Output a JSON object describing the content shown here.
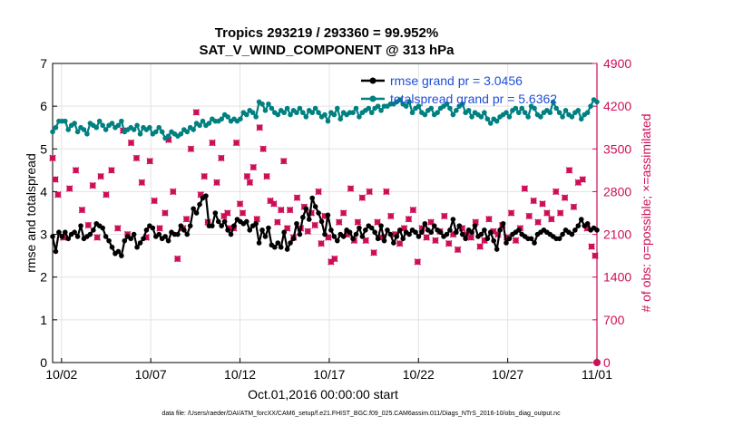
{
  "chart_data": {
    "type": "line",
    "title_line1": "Tropics 293219 / 293360 = 99.952%",
    "title_line2": "SAT_V_WIND_COMPONENT @ 313 hPa",
    "xlabel": "Oct.01,2016 00:00:00 start",
    "ylabel_left": "rmse and totalspread",
    "ylabel_right": "# of obs: o=possible; ×=assimilated",
    "footnote": "data file: /Users/raeder/DAI/ATM_forcXX/CAM6_setup/f.e21.FHIST_BGC.f09_025.CAM6assim.011/Diags_NTrS_2016-10/obs_diag_output.nc",
    "x_start_date": "10/01",
    "x_ticks": [
      {
        "day": 1,
        "label": "10/02"
      },
      {
        "day": 6,
        "label": "10/07"
      },
      {
        "day": 11,
        "label": "10/12"
      },
      {
        "day": 16,
        "label": "10/17"
      },
      {
        "day": 21,
        "label": "10/22"
      },
      {
        "day": 26,
        "label": "10/27"
      },
      {
        "day": 31,
        "label": "11/01"
      }
    ],
    "xlim_days": [
      0.5,
      31.0
    ],
    "ylim_left": [
      0,
      7
    ],
    "y_ticks_left": [
      0,
      1,
      2,
      3,
      4,
      5,
      6,
      7
    ],
    "ylim_right": [
      0,
      4900
    ],
    "y_ticks_right": [
      0,
      700,
      1400,
      2100,
      2800,
      3500,
      4200,
      4900
    ],
    "grid": true,
    "legend_placement": "top-right",
    "colors": {
      "rmse": "#000000",
      "spread": "#008080",
      "obs": "#cc0f57",
      "right_axis": "#cc0f57",
      "legend_text": "#1f4fd8"
    },
    "series": [
      {
        "name": "rmse grand pr = 3.0456",
        "axis": "left",
        "color": "#000000",
        "values": [
          2.95,
          2.6,
          3.05,
          2.95,
          3.05,
          2.9,
          3.0,
          3.05,
          2.95,
          3.2,
          2.9,
          2.95,
          3.0,
          3.1,
          3.25,
          3.2,
          3.15,
          2.95,
          2.85,
          2.7,
          2.55,
          2.6,
          2.5,
          2.85,
          2.95,
          2.9,
          3.0,
          2.7,
          2.8,
          2.9,
          3.1,
          3.2,
          3.15,
          2.95,
          3.0,
          2.9,
          2.95,
          2.85,
          3.05,
          3.0,
          3.0,
          3.2,
          3.1,
          3.0,
          3.2,
          3.6,
          3.5,
          3.7,
          3.85,
          3.9,
          3.2,
          3.2,
          3.5,
          3.3,
          3.2,
          3.3,
          3.1,
          3.0,
          3.2,
          3.35,
          3.3,
          3.25,
          3.3,
          3.1,
          3.2,
          3.25,
          2.8,
          3.1,
          2.95,
          3.15,
          2.75,
          2.7,
          2.8,
          2.7,
          3.05,
          2.65,
          2.8,
          2.9,
          3.25,
          3.0,
          3.4,
          3.6,
          3.35,
          3.85,
          3.65,
          3.5,
          3.3,
          3.0,
          3.45,
          3.1,
          2.95,
          2.85,
          3.0,
          2.95,
          3.1,
          3.05,
          2.9,
          3.0,
          3.15,
          2.95,
          3.1,
          3.2,
          3.15,
          3.05,
          2.9,
          3.2,
          2.85,
          3.1,
          3.0,
          2.8,
          2.95,
          3.1,
          2.9,
          3.05,
          3.0,
          3.1,
          3.05,
          2.95,
          3.05,
          3.25,
          3.1,
          3.05,
          3.2,
          3.1,
          3.05,
          2.95,
          3.0,
          3.1,
          3.35,
          3.05,
          3.2,
          3.0,
          2.9,
          3.1,
          3.05,
          3.2,
          2.95,
          3.0,
          3.1,
          2.9,
          3.05,
          2.85,
          2.65,
          3.1,
          3.25,
          2.8,
          2.9,
          3.0,
          3.05,
          3.1,
          3.0,
          2.95,
          2.9,
          2.9,
          2.8,
          3.0,
          3.05,
          3.1,
          3.05,
          3.0,
          2.95,
          2.9,
          2.9,
          3.0,
          3.1,
          3.05,
          3.0,
          3.1,
          3.2,
          3.35,
          3.2,
          3.25,
          3.1,
          3.15,
          3.1
        ]
      },
      {
        "name": "totalspread grand pr = 5.6362",
        "axis": "left",
        "color": "#008080",
        "values": [
          5.4,
          5.5,
          5.65,
          5.65,
          5.65,
          5.45,
          5.55,
          5.6,
          5.4,
          5.5,
          5.45,
          5.35,
          5.6,
          5.55,
          5.5,
          5.65,
          5.55,
          5.45,
          5.55,
          5.6,
          5.5,
          5.55,
          5.65,
          5.4,
          5.45,
          5.5,
          5.45,
          5.55,
          5.35,
          5.5,
          5.45,
          5.5,
          5.35,
          5.4,
          5.5,
          5.4,
          5.25,
          5.3,
          5.4,
          5.35,
          5.3,
          5.35,
          5.45,
          5.4,
          5.5,
          5.45,
          5.6,
          5.55,
          5.65,
          5.55,
          5.6,
          5.7,
          5.65,
          5.65,
          5.7,
          5.8,
          5.75,
          5.65,
          5.7,
          5.65,
          5.7,
          5.85,
          5.8,
          5.9,
          5.85,
          5.75,
          6.1,
          6.05,
          5.9,
          6.05,
          5.95,
          5.85,
          5.8,
          5.9,
          5.85,
          5.95,
          5.8,
          5.9,
          5.85,
          5.95,
          5.85,
          5.75,
          5.9,
          5.85,
          5.95,
          5.85,
          5.75,
          5.8,
          5.65,
          5.85,
          5.8,
          5.95,
          5.7,
          5.85,
          5.8,
          5.85,
          5.85,
          5.95,
          5.75,
          5.85,
          5.9,
          5.95,
          5.85,
          5.95,
          6.0,
          5.9,
          6.0,
          6.0,
          6.05,
          6.05,
          6.1,
          6.15,
          6.05,
          6.0,
          6.1,
          5.85,
          5.95,
          6.0,
          5.85,
          5.8,
          5.9,
          5.95,
          5.8,
          5.85,
          5.95,
          6.0,
          6.05,
          5.95,
          5.8,
          5.9,
          6.0,
          6.05,
          5.85,
          5.9,
          5.75,
          5.85,
          5.8,
          5.75,
          5.85,
          5.7,
          5.6,
          5.7,
          5.65,
          5.75,
          5.8,
          5.85,
          5.75,
          5.9,
          5.95,
          5.85,
          5.95,
          5.85,
          5.75,
          6.0,
          5.95,
          5.8,
          5.75,
          5.85,
          5.9,
          5.85,
          6.1,
          5.95,
          5.85,
          5.75,
          5.9,
          5.8,
          5.75,
          5.85,
          5.9,
          5.7,
          5.8,
          5.85,
          6.0,
          6.15,
          6.1
        ]
      }
    ],
    "obs_points": {
      "name": "assimilated",
      "axis": "right",
      "color": "#cc0f57",
      "x_days": [
        0.5,
        0.65,
        0.8,
        1.1,
        1.45,
        1.8,
        2.15,
        2.5,
        2.75,
        3.0,
        3.2,
        3.5,
        3.8,
        4.15,
        4.45,
        4.7,
        4.9,
        5.2,
        5.5,
        5.75,
        5.95,
        6.2,
        6.5,
        6.8,
        7.0,
        7.25,
        7.5,
        7.8,
        8.0,
        8.25,
        8.55,
        8.8,
        9.0,
        9.2,
        9.45,
        9.7,
        9.95,
        10.1,
        10.3,
        10.45,
        10.65,
        10.8,
        11.0,
        11.15,
        11.4,
        11.55,
        11.75,
        11.95,
        12.1,
        12.3,
        12.5,
        12.7,
        12.9,
        13.1,
        13.3,
        13.45,
        13.65,
        13.8,
        14.0,
        14.2,
        14.4,
        14.6,
        14.8,
        15.0,
        15.2,
        15.4,
        15.55,
        15.75,
        15.95,
        16.1,
        16.3,
        16.55,
        16.8,
        17.0,
        17.2,
        17.4,
        17.6,
        17.85,
        18.05,
        18.25,
        18.5,
        18.7,
        18.95,
        19.2,
        19.45,
        19.7,
        19.95,
        20.2,
        20.45,
        20.7,
        20.95,
        21.2,
        21.45,
        21.7,
        21.95,
        22.2,
        22.45,
        22.7,
        22.95,
        23.2,
        23.45,
        23.7,
        23.95,
        24.2,
        24.45,
        24.7,
        24.95,
        25.2,
        25.45,
        25.7,
        25.95,
        26.2,
        26.45,
        26.7,
        26.95,
        27.2,
        27.45,
        27.7,
        27.95,
        28.2,
        28.45,
        28.7,
        28.95,
        29.2,
        29.45,
        29.7,
        29.95,
        30.2,
        30.45,
        30.7,
        30.9
      ],
      "values": [
        3350,
        3000,
        2750,
        2050,
        2850,
        3150,
        2500,
        2250,
        2900,
        2050,
        3050,
        2750,
        3150,
        2200,
        3800,
        2100,
        3600,
        3350,
        2950,
        2050,
        3300,
        2650,
        2200,
        2450,
        3650,
        2800,
        1700,
        2200,
        2350,
        3500,
        4100,
        2750,
        3050,
        2300,
        3600,
        2950,
        3350,
        2400,
        2450,
        2200,
        2200,
        3600,
        2600,
        2450,
        3050,
        2950,
        3200,
        2350,
        3850,
        3500,
        3050,
        2650,
        2600,
        2300,
        2500,
        3300,
        2200,
        2500,
        2050,
        2700,
        2200,
        2550,
        2150,
        2450,
        2250,
        2800,
        1950,
        2400,
        2050,
        1650,
        1700,
        2300,
        2450,
        2100,
        2850,
        2000,
        2300,
        2700,
        2000,
        2800,
        1800,
        2300,
        2050,
        2800,
        2400,
        2100,
        1950,
        2200,
        2350,
        2500,
        1650,
        2200,
        2050,
        2300,
        2000,
        2150,
        2400,
        1950,
        2100,
        1850,
        2200,
        2100,
        2050,
        2300,
        1900,
        2000,
        2350,
        2150,
        2100,
        2250,
        2050,
        2450,
        2000,
        2200,
        2850,
        2400,
        2650,
        2300,
        2600,
        2450,
        2350,
        2800,
        2450,
        2700,
        3150,
        2550,
        2950,
        3000,
        2200,
        1900,
        1750
      ]
    },
    "obs_possible_point": {
      "x_day": 31.0,
      "value": 0
    }
  }
}
